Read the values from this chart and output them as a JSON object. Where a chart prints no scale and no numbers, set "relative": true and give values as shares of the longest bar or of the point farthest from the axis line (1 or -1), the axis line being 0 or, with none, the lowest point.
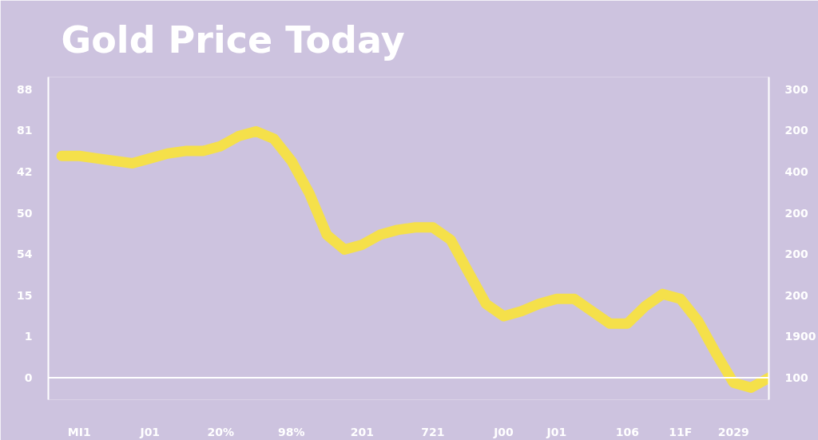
{
  "chart_data": {
    "type": "line",
    "title": "Gold  Price  Today",
    "relative": true,
    "categories": [
      null,
      "MI1",
      null,
      null,
      null,
      "J01",
      null,
      null,
      null,
      "20%",
      null,
      null,
      null,
      "98%",
      null,
      null,
      null,
      "201",
      null,
      null,
      null,
      "721",
      null,
      null,
      null,
      "J00",
      null,
      null,
      "J01",
      null,
      null,
      null,
      "106",
      null,
      null,
      "11F",
      null,
      null,
      "2029",
      null,
      null
    ],
    "series": [
      {
        "color": "#f5e04a",
        "values": [
          0.9,
          0.9,
          0.89,
          0.88,
          0.87,
          0.89,
          0.91,
          0.92,
          0.92,
          0.94,
          0.98,
          1,
          0.97,
          0.88,
          0.75,
          0.58,
          0.52,
          0.54,
          0.58,
          0.6,
          0.61,
          0.61,
          0.56,
          0.43,
          0.3,
          0.25,
          0.27,
          0.3,
          0.32,
          0.32,
          0.27,
          0.22,
          0.22,
          0.29,
          0.34,
          0.32,
          0.23,
          0.1,
          -0.02,
          -0.04,
          0
        ]
      }
    ],
    "line_style": "solid",
    "annotations": [
      "88",
      "81",
      "42",
      "50",
      "54",
      "15",
      "1",
      "0",
      "300",
      "200",
      "400",
      "200",
      "200",
      "200",
      "1900",
      "100"
    ]
  }
}
